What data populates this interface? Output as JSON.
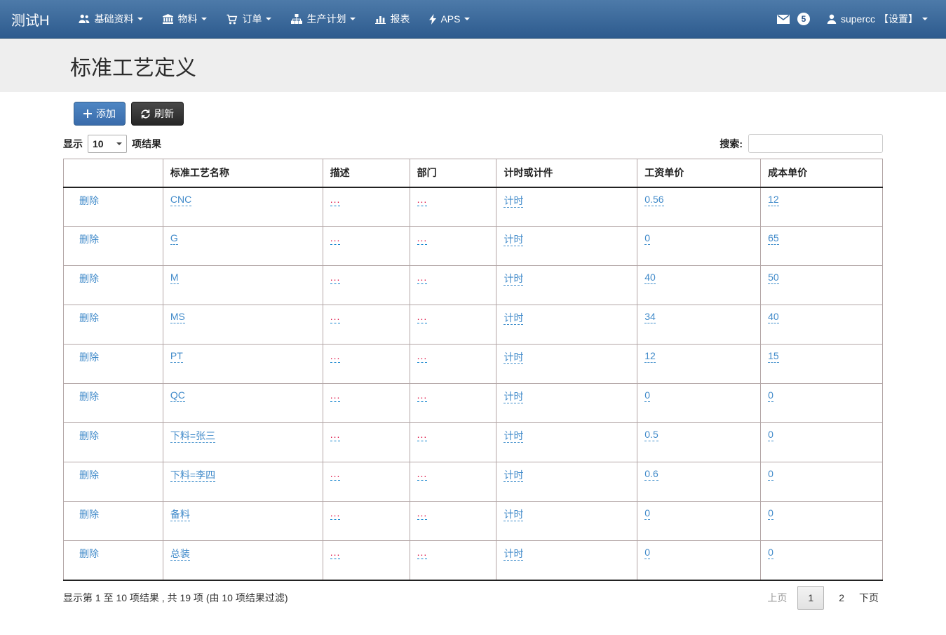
{
  "navbar": {
    "brand": "测试H",
    "items": [
      {
        "label": "基础资料",
        "icon": "users-icon",
        "caret": true
      },
      {
        "label": "物料",
        "icon": "bank-icon",
        "caret": true
      },
      {
        "label": "订单",
        "icon": "cart-icon",
        "caret": true
      },
      {
        "label": "生产计划",
        "icon": "sitemap-icon",
        "caret": true
      },
      {
        "label": "报表",
        "icon": "chart-icon",
        "caret": false
      },
      {
        "label": "APS",
        "icon": "bolt-icon",
        "caret": true
      }
    ],
    "messages_badge": "5",
    "user": "supercc",
    "settings_label": "【设置】"
  },
  "page": {
    "title": "标准工艺定义"
  },
  "toolbar": {
    "add_label": "添加",
    "refresh_label": "刷新"
  },
  "table_controls": {
    "show_label": "显示",
    "length_value": "10",
    "results_label": "项结果",
    "search_label": "搜索:",
    "search_value": ""
  },
  "table": {
    "headers": [
      "",
      "标准工艺名称",
      "描述",
      "部门",
      "计时或计件",
      "工资单价",
      "成本单价"
    ],
    "delete_label": "删除",
    "empty_placeholder": "...",
    "rows": [
      {
        "name": "CNC",
        "desc": "",
        "dept": "",
        "mode": "计时",
        "wage": "0.56",
        "cost": "12"
      },
      {
        "name": "G",
        "desc": "",
        "dept": "",
        "mode": "计时",
        "wage": "0",
        "cost": "65"
      },
      {
        "name": "M",
        "desc": "",
        "dept": "",
        "mode": "计时",
        "wage": "40",
        "cost": "50"
      },
      {
        "name": "MS",
        "desc": "",
        "dept": "",
        "mode": "计时",
        "wage": "34",
        "cost": "40"
      },
      {
        "name": "PT",
        "desc": "",
        "dept": "",
        "mode": "计时",
        "wage": "12",
        "cost": "15"
      },
      {
        "name": "QC",
        "desc": "",
        "dept": "",
        "mode": "计时",
        "wage": "0",
        "cost": "0"
      },
      {
        "name": "下料=张三",
        "desc": "",
        "dept": "",
        "mode": "计时",
        "wage": "0.5",
        "cost": "0"
      },
      {
        "name": "下料=李四",
        "desc": "",
        "dept": "",
        "mode": "计时",
        "wage": "0.6",
        "cost": "0"
      },
      {
        "name": "备料",
        "desc": "",
        "dept": "",
        "mode": "计时",
        "wage": "0",
        "cost": "0"
      },
      {
        "name": "总装",
        "desc": "",
        "dept": "",
        "mode": "计时",
        "wage": "0",
        "cost": "0"
      }
    ]
  },
  "footer": {
    "info": "显示第 1 至 10 项结果 , 共 19 项 (由 10 项结果过滤)",
    "pagination": {
      "prev": "上页",
      "pages": [
        "1",
        "2"
      ],
      "active": "1",
      "next": "下页"
    }
  },
  "colors": {
    "navbar_top": "#4d7aa9",
    "navbar_bottom": "#2d5b8e",
    "accent_link": "#428bca",
    "empty_value_red": "#dd1144",
    "editable_underline": "#0f82cd",
    "header_band": "#eeeeee",
    "table_border": "#b3a6a6"
  }
}
